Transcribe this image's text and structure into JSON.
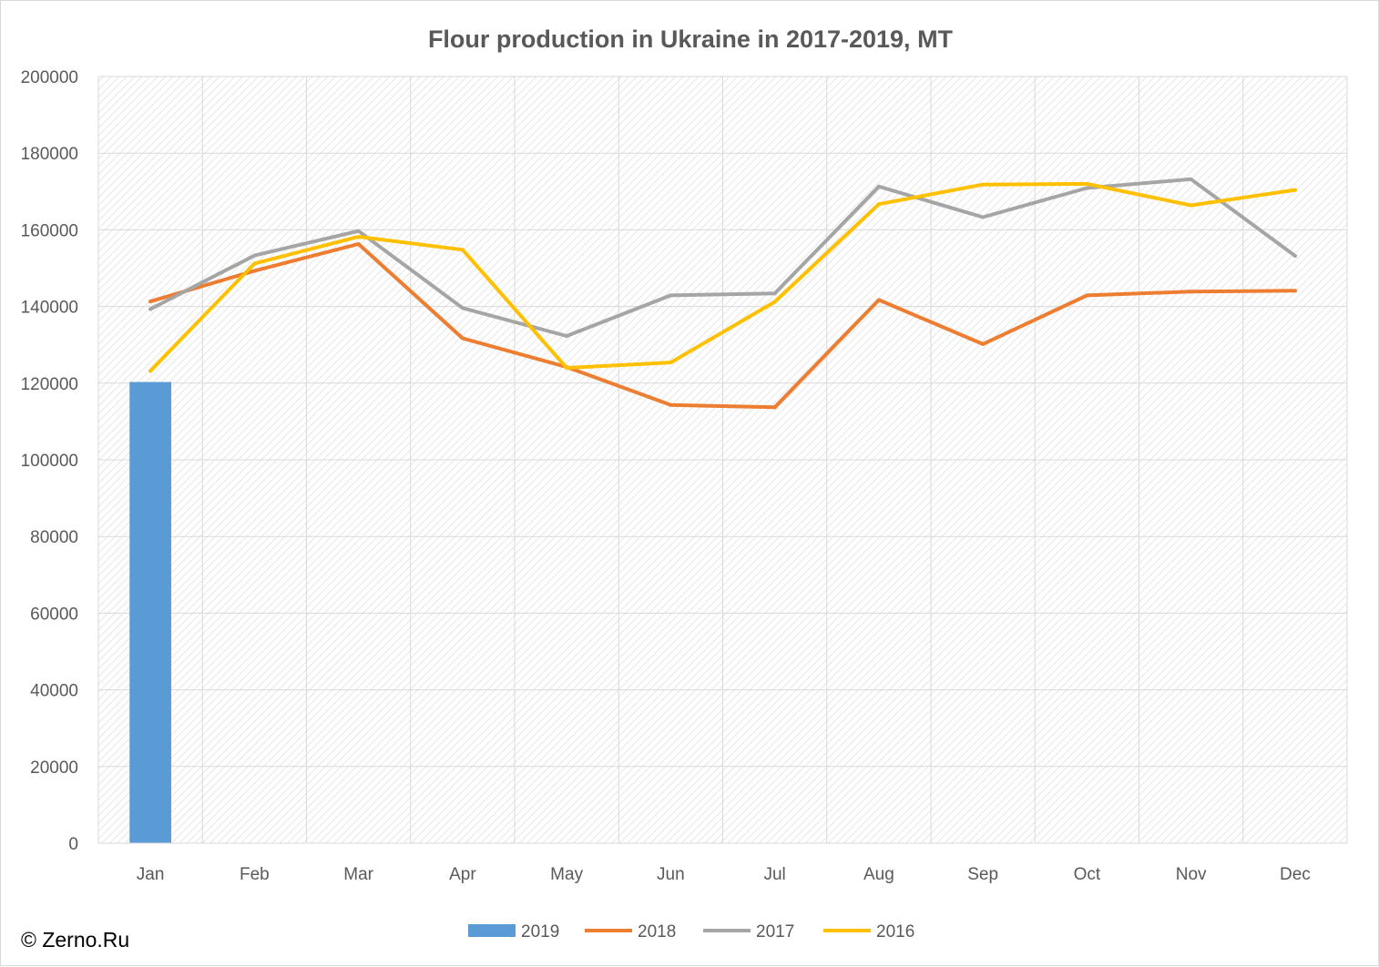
{
  "chart_data": {
    "type": "bar",
    "title": "Flour production in Ukraine in 2017-2019, MT",
    "categories": [
      "Jan",
      "Feb",
      "Mar",
      "Apr",
      "May",
      "Jun",
      "Jul",
      "Aug",
      "Sep",
      "Oct",
      "Nov",
      "Dec"
    ],
    "ylim": [
      0,
      200000
    ],
    "yticks": [
      "0",
      "20000",
      "40000",
      "60000",
      "80000",
      "100000",
      "120000",
      "140000",
      "160000",
      "180000",
      "200000"
    ],
    "grid": true,
    "legend_position": "bottom",
    "series": [
      {
        "name": "2019",
        "type": "bar",
        "color": "#5b9bd5",
        "values": [
          120300,
          null,
          null,
          null,
          null,
          null,
          null,
          null,
          null,
          null,
          null,
          null
        ]
      },
      {
        "name": "2018",
        "type": "line",
        "color": "#ed7d31",
        "values": [
          141300,
          149300,
          156300,
          131700,
          124200,
          114300,
          113700,
          141700,
          130200,
          142900,
          143900,
          144100
        ]
      },
      {
        "name": "2017",
        "type": "line",
        "color": "#a5a5a5",
        "values": [
          139300,
          153300,
          159700,
          139600,
          132300,
          142900,
          143400,
          171300,
          163300,
          170900,
          173200,
          153200
        ]
      },
      {
        "name": "2016",
        "type": "line",
        "color": "#ffc000",
        "values": [
          123200,
          151200,
          158200,
          154800,
          124000,
          125400,
          141200,
          166700,
          171800,
          172000,
          166400,
          170400
        ]
      }
    ]
  },
  "copyright": "© Zerno.Ru"
}
